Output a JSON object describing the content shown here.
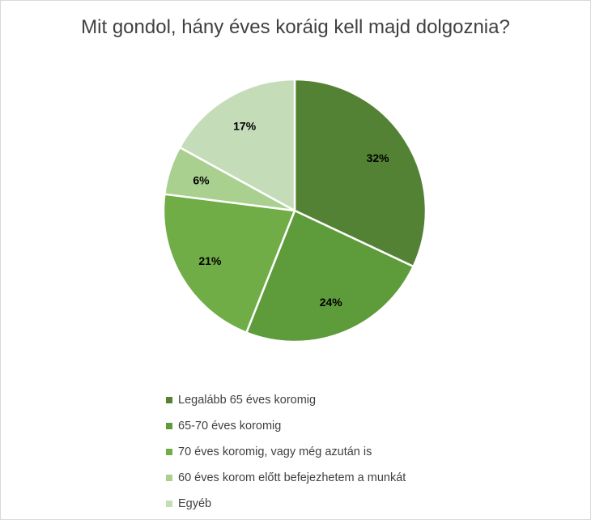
{
  "chart_data": {
    "type": "pie",
    "title": "Mit gondol, hány éves koráig kell majd dolgoznia?",
    "categories": [
      "Legalább 65 éves koromig",
      "65-70 éves koromig",
      "70 éves koromig, vagy még azután is",
      "60 éves korom előtt befejezhetem a munkát",
      "Egyéb"
    ],
    "values": [
      32,
      24,
      21,
      6,
      17
    ],
    "value_labels": [
      "32%",
      "24%",
      "21%",
      "6%",
      "17%"
    ],
    "colors": [
      "#548235",
      "#5e9b3a",
      "#70ad47",
      "#a9d08e",
      "#c5dcb9"
    ],
    "legend_position": "bottom"
  }
}
